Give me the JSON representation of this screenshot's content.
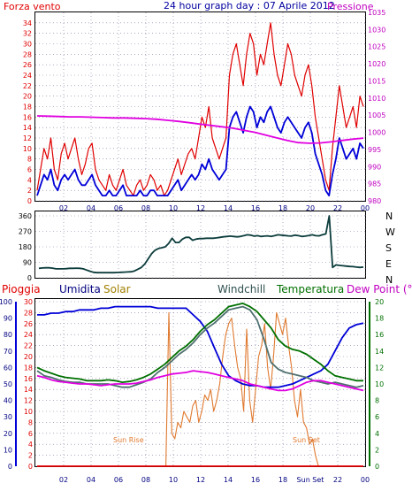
{
  "colors": {
    "red": "#e00000",
    "blue": "#0000d8",
    "magenta": "#e000e0",
    "darkteal": "#0c3c3c",
    "green": "#007000",
    "gray": "#507070",
    "orange": "#e07a30",
    "navy": "#000080",
    "axisblue": "#0000a0",
    "olive": "#a08000",
    "teal": "#305050",
    "pink": "#c000c0",
    "grid": "#7a7aa0"
  },
  "chart_data": [
    {
      "type": "line",
      "title": "24 hour graph day : 07 Aprile 2012",
      "left_label": "Forza vento",
      "right_label": "Pressione",
      "ylim_left": [
        0,
        36
      ],
      "ylim_right": [
        980,
        1035
      ],
      "yticks_left": [
        "0",
        "2",
        "4",
        "6",
        "8",
        "10",
        "12",
        "14",
        "16",
        "18",
        "20",
        "22",
        "24",
        "26",
        "28",
        "30",
        "32",
        "34"
      ],
      "yticks_right": [
        "980",
        "985",
        "990",
        "995",
        "1000",
        "1005",
        "1010",
        "1015",
        "1020",
        "1025",
        "1030",
        "1035"
      ],
      "xticks": [
        "02",
        "04",
        "06",
        "08",
        "10",
        "12",
        "14",
        "16",
        "18",
        "20",
        "22",
        "00"
      ],
      "series": [
        {
          "name": "gust",
          "color": "red",
          "axis": "left",
          "values": [
            2,
            6,
            10,
            8,
            12,
            6,
            4,
            9,
            11,
            8,
            10,
            12,
            8,
            5,
            7,
            10,
            11,
            6,
            4,
            3,
            2,
            5,
            3,
            2,
            4,
            6,
            3,
            2,
            1,
            3,
            4,
            2,
            3,
            5,
            4,
            2,
            3,
            1,
            2,
            4,
            6,
            8,
            5,
            7,
            9,
            10,
            8,
            12,
            16,
            14,
            18,
            12,
            10,
            8,
            10,
            12,
            24,
            28,
            30,
            26,
            22,
            28,
            32,
            30,
            24,
            28,
            26,
            30,
            34,
            28,
            24,
            22,
            26,
            30,
            28,
            24,
            22,
            20,
            24,
            26,
            22,
            16,
            12,
            8,
            4,
            2,
            10,
            16,
            22,
            18,
            14,
            16,
            18,
            14,
            20,
            18
          ]
        },
        {
          "name": "mean",
          "color": "blue",
          "axis": "left",
          "values": [
            1,
            3,
            5,
            4,
            6,
            3,
            2,
            4,
            5,
            4,
            5,
            6,
            4,
            3,
            3,
            4,
            5,
            3,
            2,
            1,
            1,
            2,
            1,
            1,
            2,
            3,
            1,
            1,
            1,
            1,
            2,
            1,
            1,
            2,
            2,
            1,
            1,
            1,
            1,
            2,
            3,
            4,
            2,
            3,
            4,
            5,
            4,
            5,
            7,
            6,
            8,
            6,
            5,
            4,
            5,
            6,
            14,
            16,
            17,
            15,
            13,
            16,
            18,
            17,
            14,
            16,
            15,
            17,
            18,
            16,
            14,
            13,
            15,
            16,
            15,
            14,
            13,
            12,
            14,
            15,
            13,
            9,
            7,
            5,
            2,
            1,
            5,
            8,
            12,
            10,
            8,
            9,
            10,
            8,
            11,
            10
          ]
        },
        {
          "name": "pressure",
          "color": "magenta",
          "axis": "right",
          "values": [
            1004.8,
            1004.7,
            1004.6,
            1004.5,
            1004.5,
            1004.4,
            1004.3,
            1004.2,
            1004.2,
            1004.1,
            1004.0,
            1003.8,
            1003.5,
            1003.2,
            1002.8,
            1002.4,
            1002.0,
            1001.6,
            1001.2,
            1000.6,
            1000.0,
            999.2,
            998.4,
            997.6,
            997.0,
            996.8,
            996.9,
            997.2,
            997.6,
            998.0,
            998.3
          ]
        }
      ]
    },
    {
      "type": "line",
      "yticks": [
        "0",
        "90",
        "180",
        "270",
        "360"
      ],
      "right_labels": [
        "N",
        "W",
        "S",
        "E",
        "N"
      ],
      "ylim": [
        0,
        360
      ],
      "series": [
        {
          "name": "direction",
          "color": "darkteal",
          "values": [
            55,
            57,
            58,
            58,
            56,
            52,
            52,
            52,
            53,
            55,
            55,
            56,
            55,
            52,
            45,
            38,
            32,
            30,
            30,
            30,
            30,
            30,
            30,
            31,
            32,
            33,
            34,
            35,
            40,
            50,
            60,
            80,
            110,
            140,
            160,
            170,
            175,
            180,
            200,
            230,
            205,
            205,
            225,
            235,
            235,
            218,
            225,
            228,
            228,
            230,
            230,
            230,
            232,
            235,
            238,
            240,
            242,
            240,
            238,
            240,
            245,
            250,
            248,
            242,
            245,
            240,
            242,
            244,
            240,
            245,
            250,
            248,
            246,
            244,
            243,
            248,
            245,
            240,
            242,
            246,
            250,
            245,
            244,
            250,
            255,
            360,
            60,
            75,
            72,
            70,
            68,
            66,
            65,
            62,
            60,
            62
          ]
        }
      ]
    },
    {
      "type": "line",
      "labels": {
        "rain": "Pioggia",
        "humidity": "Umidita",
        "solar": "Solar",
        "windchill": "Windchill",
        "temperature": "Temperatura",
        "dewpoint": "Dew Point (°C)"
      },
      "yticks_rain": [
        "0",
        "2",
        "4",
        "6",
        "8",
        "10",
        "12",
        "14",
        "16",
        "18",
        "20",
        "22",
        "24",
        "26",
        "28",
        "30"
      ],
      "yticks_hum": [
        "0",
        "10",
        "20",
        "30",
        "40",
        "50",
        "60",
        "70",
        "80",
        "90",
        "100"
      ],
      "yticks_temp": [
        "0",
        "2",
        "4",
        "6",
        "8",
        "10",
        "12",
        "14",
        "16",
        "18",
        "20"
      ],
      "ylim_hum": [
        0,
        100
      ],
      "ylim_temp": [
        0,
        20
      ],
      "annotations": {
        "sunrise": "Sun Rise",
        "sunset": "Sun Set"
      },
      "xticks": [
        "02",
        "04",
        "06",
        "08",
        "10",
        "12",
        "14",
        "16",
        "18",
        "Sun Set",
        "22",
        "00"
      ],
      "series": [
        {
          "name": "humidity",
          "color": "blue",
          "axis": "hum",
          "values": [
            92,
            92,
            93,
            93,
            94,
            94,
            95,
            95,
            95,
            96,
            96,
            97,
            97,
            97,
            97,
            97,
            97,
            96,
            96,
            96,
            96,
            96,
            92,
            88,
            82,
            72,
            62,
            55,
            52,
            50,
            49,
            49,
            48,
            48,
            48,
            49,
            50,
            52,
            54,
            56,
            58,
            62,
            70,
            78,
            84,
            86,
            87
          ]
        },
        {
          "name": "temperature",
          "color": "green",
          "axis": "temp",
          "values": [
            12.0,
            11.6,
            11.3,
            11.0,
            10.8,
            10.7,
            10.6,
            10.4,
            10.4,
            10.4,
            10.5,
            10.4,
            10.2,
            10.3,
            10.5,
            10.8,
            11.2,
            11.8,
            12.4,
            13.2,
            14.0,
            14.6,
            15.4,
            16.4,
            17.2,
            17.8,
            18.6,
            19.4,
            19.6,
            19.8,
            19.4,
            18.8,
            17.8,
            16.8,
            15.4,
            14.6,
            14.2,
            14.0,
            13.6,
            13.0,
            12.4,
            11.6,
            11.0,
            10.8,
            10.6,
            10.4,
            10.4
          ]
        },
        {
          "name": "windchill",
          "color": "gray",
          "axis": "temp",
          "values": [
            11.6,
            11.0,
            10.8,
            10.5,
            10.3,
            10.2,
            10.2,
            10.0,
            10.0,
            10.0,
            10.0,
            9.8,
            9.6,
            9.6,
            9.9,
            10.2,
            10.6,
            11.4,
            12.0,
            12.8,
            13.6,
            14.2,
            15.0,
            16.0,
            16.8,
            17.4,
            18.2,
            19.0,
            19.2,
            19.4,
            19.0,
            17.8,
            15.4,
            12.6,
            11.8,
            11.4,
            11.2,
            11.0,
            10.8,
            10.4,
            10.2,
            10.0,
            10.2,
            10.0,
            9.8,
            9.6,
            9.8
          ]
        },
        {
          "name": "dewpoint",
          "color": "magenta",
          "axis": "temp",
          "values": [
            11.0,
            10.8,
            10.5,
            10.3,
            10.2,
            10.1,
            10.0,
            10.0,
            9.9,
            9.8,
            9.9,
            10.0,
            10.0,
            10.0,
            10.1,
            10.3,
            10.5,
            10.8,
            11.0,
            11.2,
            11.3,
            11.4,
            11.6,
            11.5,
            11.4,
            11.2,
            11.0,
            10.8,
            10.6,
            10.4,
            10.0,
            9.8,
            9.6,
            9.4,
            9.2,
            9.2,
            9.4,
            9.8,
            10.2,
            10.4,
            10.4,
            10.2,
            10.0,
            9.8,
            9.6,
            9.4,
            9.2
          ]
        },
        {
          "name": "solar",
          "color": "orange",
          "axis": "rain",
          "values": [
            0,
            0,
            0,
            0,
            0,
            0,
            0,
            0,
            0,
            0,
            0,
            0,
            0,
            0,
            0,
            0,
            0,
            0,
            0,
            0,
            0,
            0,
            0,
            0,
            0,
            0,
            0,
            0,
            0,
            0,
            0,
            0,
            0,
            0,
            0,
            0,
            0,
            0,
            0,
            0,
            0,
            0,
            0,
            0,
            28,
            6,
            5,
            8,
            7,
            10,
            9,
            8,
            11,
            12,
            8,
            10,
            13,
            12,
            14,
            10,
            12,
            15,
            20,
            24,
            26,
            27,
            22,
            18,
            16,
            10,
            25,
            12,
            8,
            14,
            20,
            22,
            26,
            18,
            14,
            20,
            28,
            26,
            24,
            27,
            22,
            18,
            12,
            9,
            14,
            8,
            7,
            4,
            5,
            2,
            0,
            0,
            0,
            0,
            0,
            0,
            0,
            0,
            0,
            0,
            0,
            0,
            0,
            0,
            0,
            0
          ]
        },
        {
          "name": "rain",
          "color": "red",
          "axis": "rain",
          "values": [
            0,
            0,
            0,
            0,
            0,
            0,
            0,
            0,
            0,
            0,
            0,
            0
          ]
        }
      ]
    }
  ]
}
